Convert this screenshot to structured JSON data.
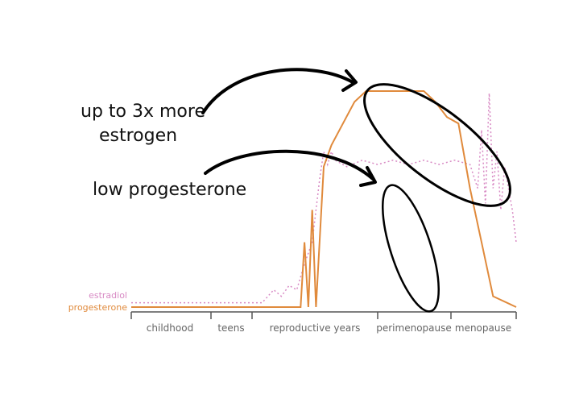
{
  "chart_data": {
    "type": "line",
    "title": "",
    "xlabel": "",
    "ylabel": "",
    "x_categories": [
      "childhood",
      "teens",
      "reproductive years",
      "perimenopause",
      "menopause"
    ],
    "series": [
      {
        "name": "estradiol",
        "color": "#d88ac4",
        "style": "dotted",
        "values": [
          [
            0.0,
            0.02
          ],
          [
            0.34,
            0.02
          ],
          [
            0.37,
            0.08
          ],
          [
            0.39,
            0.05
          ],
          [
            0.41,
            0.1
          ],
          [
            0.43,
            0.08
          ],
          [
            0.45,
            0.2
          ],
          [
            0.47,
            0.3
          ],
          [
            0.48,
            0.45
          ],
          [
            0.49,
            0.6
          ],
          [
            0.5,
            0.72
          ],
          [
            0.51,
            0.66
          ],
          [
            0.52,
            0.72
          ],
          [
            0.53,
            0.68
          ],
          [
            0.56,
            0.65
          ],
          [
            0.6,
            0.68
          ],
          [
            0.64,
            0.66
          ],
          [
            0.68,
            0.68
          ],
          [
            0.72,
            0.66
          ],
          [
            0.76,
            0.68
          ],
          [
            0.8,
            0.66
          ],
          [
            0.84,
            0.68
          ],
          [
            0.88,
            0.66
          ],
          [
            0.9,
            0.55
          ],
          [
            0.91,
            0.82
          ],
          [
            0.92,
            0.48
          ],
          [
            0.93,
            0.99
          ],
          [
            0.94,
            0.55
          ],
          [
            0.95,
            0.72
          ],
          [
            0.96,
            0.45
          ],
          [
            0.97,
            0.65
          ],
          [
            0.98,
            0.55
          ],
          [
            0.99,
            0.45
          ],
          [
            1.0,
            0.3
          ]
        ]
      },
      {
        "name": "progesterone",
        "color": "#e08a3c",
        "style": "solid",
        "values": [
          [
            0.0,
            0.0
          ],
          [
            0.44,
            0.0
          ],
          [
            0.45,
            0.3
          ],
          [
            0.46,
            0.0
          ],
          [
            0.47,
            0.45
          ],
          [
            0.48,
            0.0
          ],
          [
            0.5,
            0.65
          ],
          [
            0.52,
            0.75
          ],
          [
            0.55,
            0.85
          ],
          [
            0.58,
            0.95
          ],
          [
            0.61,
            1.0
          ],
          [
            0.64,
            1.0
          ],
          [
            0.67,
            1.0
          ],
          [
            0.7,
            1.0
          ],
          [
            0.73,
            1.0
          ],
          [
            0.76,
            1.0
          ],
          [
            0.79,
            0.95
          ],
          [
            0.82,
            0.88
          ],
          [
            0.85,
            0.85
          ],
          [
            0.88,
            0.55
          ],
          [
            0.91,
            0.3
          ],
          [
            0.94,
            0.05
          ],
          [
            1.0,
            0.0
          ]
        ]
      }
    ],
    "annotations": [
      {
        "text": "up to 3x more",
        "line": 1
      },
      {
        "text": "estrogen",
        "line": 2
      },
      {
        "text": "low progesterone",
        "line": 3
      }
    ],
    "legend_location": "left"
  }
}
